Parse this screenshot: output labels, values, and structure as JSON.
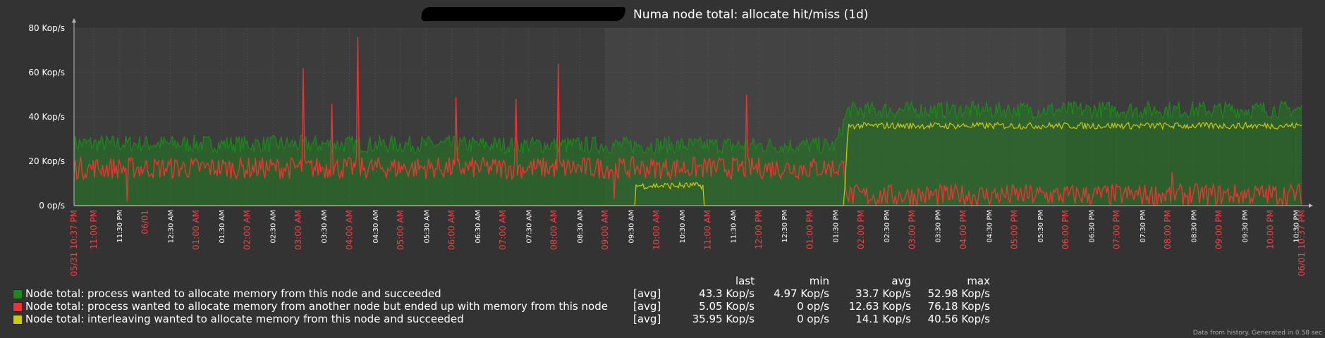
{
  "chart_data": {
    "type": "line",
    "title": "Numa node total: allocate hit/miss (1d)",
    "y_ticks": [
      "0 op/s",
      "20 Kop/s",
      "40 Kop/s",
      "60 Kop/s",
      "80 Kop/s"
    ],
    "ylim": [
      0,
      80
    ],
    "y_unit": "Kop/s",
    "x_ticks": [
      {
        "label": "05/31 10:37 PM",
        "red": true
      },
      {
        "label": "11:00 PM",
        "red": true
      },
      {
        "label": "11:30 PM",
        "red": false
      },
      {
        "label": "06/01",
        "red": true
      },
      {
        "label": "12:30 AM",
        "red": false
      },
      {
        "label": "01:00 AM",
        "red": true
      },
      {
        "label": "01:30 AM",
        "red": false
      },
      {
        "label": "02:00 AM",
        "red": true
      },
      {
        "label": "02:30 AM",
        "red": false
      },
      {
        "label": "03:00 AM",
        "red": true
      },
      {
        "label": "03:30 AM",
        "red": false
      },
      {
        "label": "04:00 AM",
        "red": true
      },
      {
        "label": "04:30 AM",
        "red": false
      },
      {
        "label": "05:00 AM",
        "red": true
      },
      {
        "label": "05:30 AM",
        "red": false
      },
      {
        "label": "06:00 AM",
        "red": true
      },
      {
        "label": "06:30 AM",
        "red": false
      },
      {
        "label": "07:00 AM",
        "red": true
      },
      {
        "label": "07:30 AM",
        "red": false
      },
      {
        "label": "08:00 AM",
        "red": true
      },
      {
        "label": "08:30 AM",
        "red": false
      },
      {
        "label": "09:00 AM",
        "red": true
      },
      {
        "label": "09:30 AM",
        "red": false
      },
      {
        "label": "10:00 AM",
        "red": true
      },
      {
        "label": "10:30 AM",
        "red": false
      },
      {
        "label": "11:00 AM",
        "red": true
      },
      {
        "label": "11:30 AM",
        "red": false
      },
      {
        "label": "12:00 PM",
        "red": true
      },
      {
        "label": "12:30 PM",
        "red": false
      },
      {
        "label": "01:00 PM",
        "red": true
      },
      {
        "label": "01:30 PM",
        "red": false
      },
      {
        "label": "02:00 PM",
        "red": true
      },
      {
        "label": "02:30 PM",
        "red": false
      },
      {
        "label": "03:00 PM",
        "red": true
      },
      {
        "label": "03:30 PM",
        "red": false
      },
      {
        "label": "04:00 PM",
        "red": true
      },
      {
        "label": "04:30 PM",
        "red": false
      },
      {
        "label": "05:00 PM",
        "red": true
      },
      {
        "label": "05:30 PM",
        "red": false
      },
      {
        "label": "06:00 PM",
        "red": true
      },
      {
        "label": "06:30 PM",
        "red": false
      },
      {
        "label": "07:00 PM",
        "red": true
      },
      {
        "label": "07:30 PM",
        "red": false
      },
      {
        "label": "08:00 PM",
        "red": true
      },
      {
        "label": "08:30 PM",
        "red": false
      },
      {
        "label": "09:00 PM",
        "red": true
      },
      {
        "label": "09:30 PM",
        "red": false
      },
      {
        "label": "10:00 PM",
        "red": true
      },
      {
        "label": "10:30 PM",
        "red": false
      },
      {
        "label": "06/01 10:37 PM",
        "red": true
      }
    ],
    "series": [
      {
        "name": "Node total: process wanted to allocate memory from this node and succeeded",
        "color": "#1a8a1a",
        "keyframes": [
          [
            "05/31 10:37 PM",
            28
          ],
          [
            "01:30 PM",
            27
          ],
          [
            "01:45 PM",
            43
          ],
          [
            "06/01 10:37 PM",
            43.3
          ]
        ],
        "noise_kops": 4,
        "last": "43.3 Kop/s",
        "min": "4.97 Kop/s",
        "avg": "33.7 Kop/s",
        "max": "52.98 Kop/s"
      },
      {
        "name": "Node total: process wanted to allocate memory from another node but ended up with memory from this node",
        "color": "#ee3333",
        "keyframes": [
          [
            "05/31 10:37 PM",
            17
          ],
          [
            "01:40 PM",
            17
          ],
          [
            "01:45 PM",
            4.5
          ],
          [
            "06/01 10:37 PM",
            5.05
          ]
        ],
        "noise_kops": 5,
        "spikes": [
          [
            "11:40 PM",
            2
          ],
          [
            "03:05 AM",
            62
          ],
          [
            "03:40 AM",
            46
          ],
          [
            "04:10 AM",
            76
          ],
          [
            "06:05 AM",
            49
          ],
          [
            "07:15 AM",
            48
          ],
          [
            "08:05 AM",
            64
          ],
          [
            "09:10 AM",
            3
          ],
          [
            "11:45 AM",
            50
          ],
          [
            "03:55 PM",
            2
          ],
          [
            "08:05 PM",
            15
          ]
        ],
        "last": "5.05 Kop/s",
        "min": "0 op/s",
        "avg": "12.63 Kop/s",
        "max": "76.18 Kop/s"
      },
      {
        "name": "Node total: interleaving wanted to allocate memory from this node and succeeded",
        "color": "#cccc00",
        "keyframes": [
          [
            "05/31 10:37 PM",
            0
          ],
          [
            "09:35 AM",
            0
          ],
          [
            "09:36 AM",
            9
          ],
          [
            "10:55 AM",
            9
          ],
          [
            "10:56 AM",
            0
          ],
          [
            "01:40 PM",
            0
          ],
          [
            "01:45 PM",
            36
          ],
          [
            "06/01 10:37 PM",
            36
          ]
        ],
        "noise_kops": 1.5,
        "last": "35.95 Kop/s",
        "min": "0 op/s",
        "avg": "14.1 Kop/s",
        "max": "40.56 Kop/s"
      }
    ],
    "legend": {
      "headers": {
        "last": "last",
        "min": "min",
        "avg": "avg",
        "max": "max"
      },
      "func": "[avg]"
    },
    "colors": {
      "background": "#333333",
      "plot": "#3c3c3c",
      "plot_alt": "#484848",
      "grid": "#555555",
      "axis": "#bbbbbb",
      "red_label": "#ee4444"
    }
  },
  "footer": "Data from history. Generated in 0.58 sec"
}
